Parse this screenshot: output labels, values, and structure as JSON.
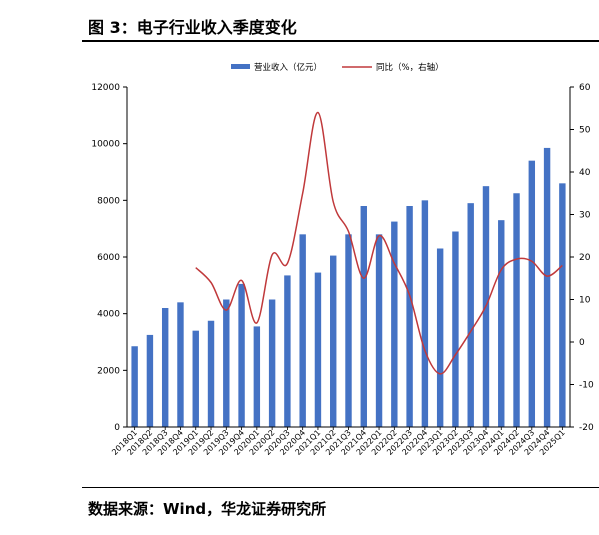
{
  "figure": {
    "title": "图 3：电子行业收入季度变化",
    "source": "数据来源：Wind，华龙证券研究所"
  },
  "colors": {
    "bar": "#4472c4",
    "line": "#c0393b",
    "axis": "#000000"
  },
  "chart_data": {
    "type": "bar",
    "categories": [
      "2018Q1",
      "2018Q2",
      "2018Q3",
      "2018Q4",
      "2019Q1",
      "2019Q2",
      "2019Q3",
      "2019Q4",
      "2020Q1",
      "2020Q2",
      "2020Q3",
      "2020Q4",
      "2021Q1",
      "2021Q2",
      "2021Q3",
      "2021Q4",
      "2022Q1",
      "2022Q2",
      "2022Q3",
      "2022Q4",
      "2023Q1",
      "2023Q2",
      "2023Q3",
      "2023Q4",
      "2024Q1",
      "2024Q2",
      "2024Q3",
      "2024Q4",
      "2025Q1"
    ],
    "series": [
      {
        "name": "营业收入（亿元）",
        "type": "bar",
        "axis": "left",
        "values": [
          2850,
          3250,
          4200,
          4400,
          3400,
          3750,
          4500,
          5050,
          3550,
          4500,
          5350,
          6800,
          5450,
          6050,
          6800,
          7800,
          6800,
          7250,
          7800,
          8000,
          6300,
          6900,
          7900,
          8500,
          7300,
          8250,
          9400,
          9850,
          8600
        ]
      },
      {
        "name": "同比（%，右轴）",
        "type": "line",
        "axis": "right",
        "values": [
          null,
          null,
          null,
          null,
          17.5,
          14.0,
          7.5,
          14.5,
          4.5,
          20.5,
          18.5,
          35.0,
          54.0,
          33.0,
          26.0,
          15.0,
          25.0,
          18.5,
          11.0,
          -2.0,
          -7.5,
          -3.0,
          2.5,
          8.5,
          17.0,
          19.5,
          19.0,
          15.5,
          18.0
        ]
      }
    ],
    "y_left": {
      "min": 0,
      "max": 12000,
      "ticks": [
        0,
        2000,
        4000,
        6000,
        8000,
        10000,
        12000
      ]
    },
    "y_right": {
      "min": -20,
      "max": 60,
      "ticks": [
        -20,
        -10,
        0,
        10,
        20,
        30,
        40,
        50,
        60
      ]
    },
    "x_tick_labels": [
      "2018Q1",
      "2018Q2",
      "2018Q3",
      "2018Q4",
      "2019Q1",
      "2019Q2",
      "2019Q3",
      "2019Q4",
      "2020Q1",
      "2020Q2",
      "2020Q3",
      "2020Q4",
      "2021Q1",
      "2021Q2",
      "2021Q3",
      "2021Q4",
      "2022Q1",
      "2022Q2",
      "2022Q3",
      "2022Q4",
      "2023Q1",
      "2023Q2",
      "2023Q3",
      "2023Q4",
      "2024Q1",
      "2024Q2",
      "2024Q3",
      "2024Q4",
      "2025Q1"
    ],
    "legend": {
      "position": "top-center",
      "bar_label": "营业收入（亿元）",
      "line_label": "同比（%，右轴）"
    },
    "grid": false
  }
}
